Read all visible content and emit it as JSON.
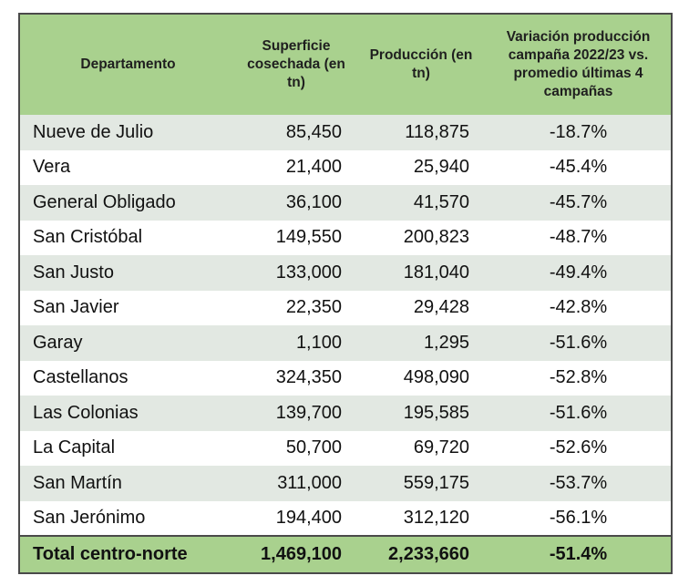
{
  "headers": {
    "departamento": "Departamento",
    "superficie": "Superficie cosechada (en tn)",
    "produccion": "Producción (en tn)",
    "variacion": "Variación producción campaña 2022/23 vs. promedio últimas 4 campañas"
  },
  "rows": [
    {
      "departamento": "Nueve de Julio",
      "superficie": "85,450",
      "produccion": "118,875",
      "variacion": "-18.7%"
    },
    {
      "departamento": "Vera",
      "superficie": "21,400",
      "produccion": "25,940",
      "variacion": "-45.4%"
    },
    {
      "departamento": "General Obligado",
      "superficie": "36,100",
      "produccion": "41,570",
      "variacion": "-45.7%"
    },
    {
      "departamento": "San Cristóbal",
      "superficie": "149,550",
      "produccion": "200,823",
      "variacion": "-48.7%"
    },
    {
      "departamento": "San Justo",
      "superficie": "133,000",
      "produccion": "181,040",
      "variacion": "-49.4%"
    },
    {
      "departamento": "San Javier",
      "superficie": "22,350",
      "produccion": "29,428",
      "variacion": "-42.8%"
    },
    {
      "departamento": "Garay",
      "superficie": "1,100",
      "produccion": "1,295",
      "variacion": "-51.6%"
    },
    {
      "departamento": "Castellanos",
      "superficie": "324,350",
      "produccion": "498,090",
      "variacion": "-52.8%"
    },
    {
      "departamento": "Las Colonias",
      "superficie": "139,700",
      "produccion": "195,585",
      "variacion": "-51.6%"
    },
    {
      "departamento": "La Capital",
      "superficie": "50,700",
      "produccion": "69,720",
      "variacion": "-52.6%"
    },
    {
      "departamento": "San Martín",
      "superficie": "311,000",
      "produccion": "559,175",
      "variacion": "-53.7%"
    },
    {
      "departamento": "San Jerónimo",
      "superficie": "194,400",
      "produccion": "312,120",
      "variacion": "-56.1%"
    }
  ],
  "total": {
    "departamento": "Total centro-norte",
    "superficie": "1,469,100",
    "produccion": "2,233,660",
    "variacion": "-51.4%"
  },
  "colors": {
    "header_bg": "#a9d18e",
    "stripe_bg": "#e2e8e2",
    "border": "#4a4a4a"
  }
}
